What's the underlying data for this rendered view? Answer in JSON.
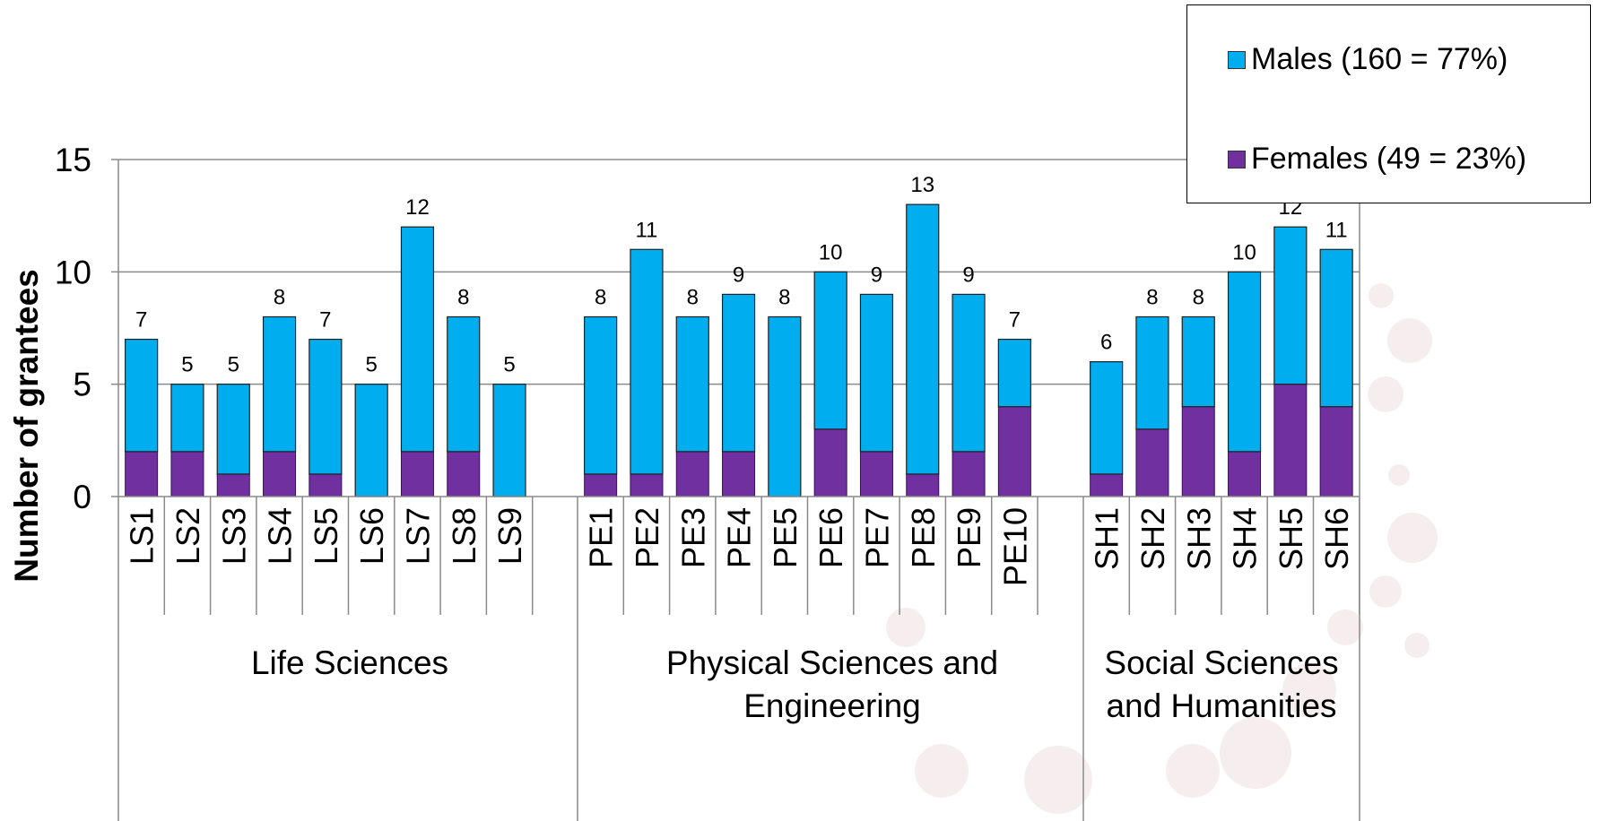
{
  "chart_data": {
    "type": "bar",
    "stacked": true,
    "ylabel": "Number of grantees",
    "xlabel": "",
    "ylim": [
      0,
      15
    ],
    "yticks": [
      0,
      5,
      10,
      15
    ],
    "grid": true,
    "legend_position": "top-right",
    "colors": {
      "Males (160 = 77%)": "#00AEEF",
      "Females (49 = 23%)": "#7030A0"
    },
    "categories": [
      "LS1",
      "LS2",
      "LS3",
      "LS4",
      "LS5",
      "LS6",
      "LS7",
      "LS8",
      "LS9",
      "PE1",
      "PE2",
      "PE3",
      "PE4",
      "PE5",
      "PE6",
      "PE7",
      "PE8",
      "PE9",
      "PE10",
      "SH1",
      "SH2",
      "SH3",
      "SH4",
      "SH5",
      "SH6"
    ],
    "groups": [
      {
        "name": "Life Sciences",
        "categories": [
          "LS1",
          "LS2",
          "LS3",
          "LS4",
          "LS5",
          "LS6",
          "LS7",
          "LS8",
          "LS9"
        ]
      },
      {
        "name": "Physical Sciences and Engineering",
        "categories": [
          "PE1",
          "PE2",
          "PE3",
          "PE4",
          "PE5",
          "PE6",
          "PE7",
          "PE8",
          "PE9",
          "PE10"
        ]
      },
      {
        "name": "Social Sciences and Humanities",
        "categories": [
          "SH1",
          "SH2",
          "SH3",
          "SH4",
          "SH5",
          "SH6"
        ]
      }
    ],
    "series": [
      {
        "name": "Females (49 = 23%)",
        "values": [
          2,
          2,
          1,
          2,
          1,
          0,
          2,
          2,
          0,
          1,
          1,
          2,
          2,
          0,
          3,
          2,
          1,
          2,
          4,
          1,
          3,
          4,
          2,
          5,
          4
        ]
      },
      {
        "name": "Males (160 = 77%)",
        "values": [
          5,
          3,
          4,
          6,
          6,
          5,
          10,
          6,
          5,
          7,
          10,
          6,
          7,
          8,
          7,
          7,
          12,
          7,
          3,
          5,
          5,
          4,
          8,
          7,
          7
        ]
      }
    ],
    "totals": [
      7,
      5,
      5,
      8,
      7,
      5,
      12,
      8,
      5,
      8,
      11,
      8,
      9,
      8,
      10,
      9,
      13,
      9,
      7,
      6,
      8,
      8,
      10,
      12,
      11
    ]
  },
  "legend": {
    "males_label": "Males (160 = 77%)",
    "females_label": "Females (49 = 23%)"
  }
}
